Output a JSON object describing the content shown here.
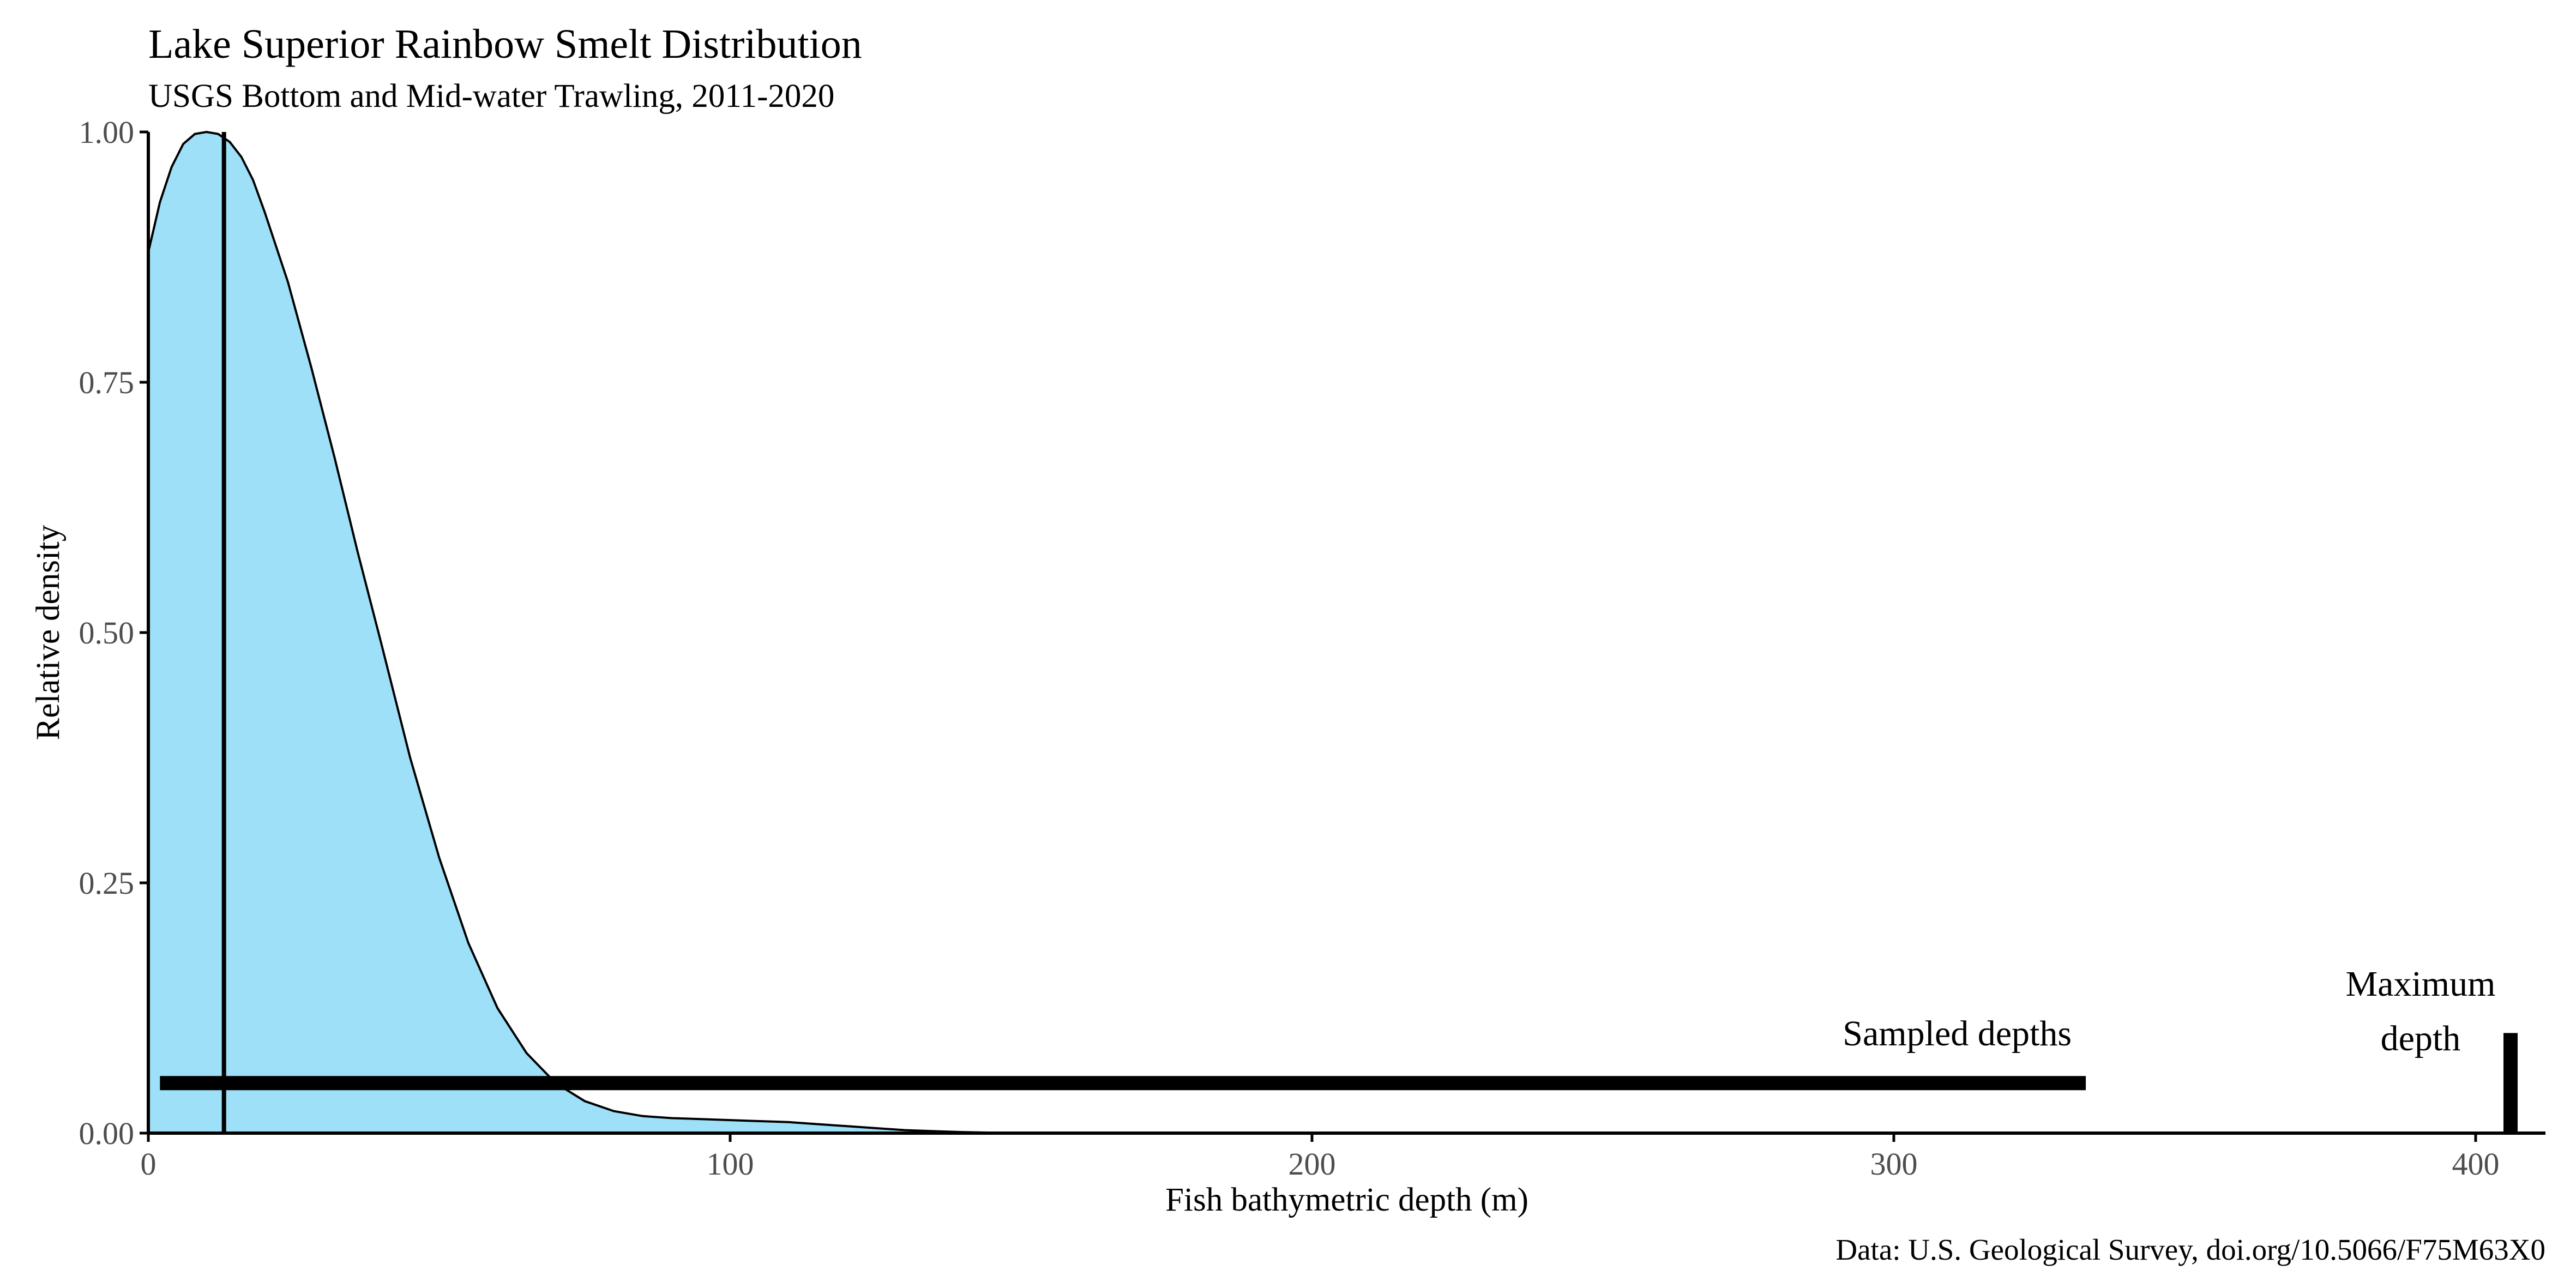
{
  "chart_data": {
    "type": "area",
    "title": "Lake Superior Rainbow Smelt Distribution",
    "subtitle": "USGS Bottom and Mid-water Trawling, 2011-2020",
    "xlabel": "Fish bathymetric depth (m)",
    "ylabel": "Relative density",
    "caption": "Data: U.S. Geological Survey, doi.org/10.5066/F75M63X0",
    "xlim": [
      0,
      412
    ],
    "ylim": [
      0,
      1.0
    ],
    "xticks": [
      0,
      100,
      200,
      300,
      400
    ],
    "xtick_labels": [
      "0",
      "100",
      "200",
      "300",
      "400"
    ],
    "yticks": [
      0,
      0.25,
      0.5,
      0.75,
      1.0
    ],
    "ytick_labels": [
      "0.00",
      "0.25",
      "0.50",
      "0.75",
      "1.00"
    ],
    "grid": false,
    "fill_color": "#9de0f8",
    "line_color": "#000000",
    "series": [
      {
        "x": [
          0,
          2,
          4,
          6,
          8,
          10,
          12,
          14,
          16,
          18,
          20,
          24,
          28,
          32,
          36,
          40,
          45,
          50,
          55,
          60,
          65,
          70,
          75,
          80,
          85,
          90,
          95,
          100,
          105,
          110,
          115,
          120,
          125,
          130,
          135,
          140,
          145,
          150,
          155,
          157
        ],
        "y": [
          0.88,
          0.93,
          0.965,
          0.988,
          0.998,
          1.0,
          0.998,
          0.99,
          0.975,
          0.952,
          0.92,
          0.85,
          0.765,
          0.675,
          0.58,
          0.49,
          0.375,
          0.275,
          0.19,
          0.125,
          0.08,
          0.05,
          0.032,
          0.022,
          0.017,
          0.015,
          0.014,
          0.013,
          0.012,
          0.011,
          0.009,
          0.007,
          0.005,
          0.003,
          0.002,
          0.001,
          0.0005,
          0.0002,
          0.0001,
          0
        ]
      }
    ],
    "annotations": {
      "peak_line": {
        "x": 13
      },
      "sampled_depths": {
        "label": "Sampled depths",
        "x_start": 2,
        "x_end": 333,
        "y": 0.05
      },
      "maximum_depth": {
        "label_line1": "Maximum",
        "label_line2": "depth",
        "x": 406,
        "y_top": 0.1
      }
    }
  }
}
